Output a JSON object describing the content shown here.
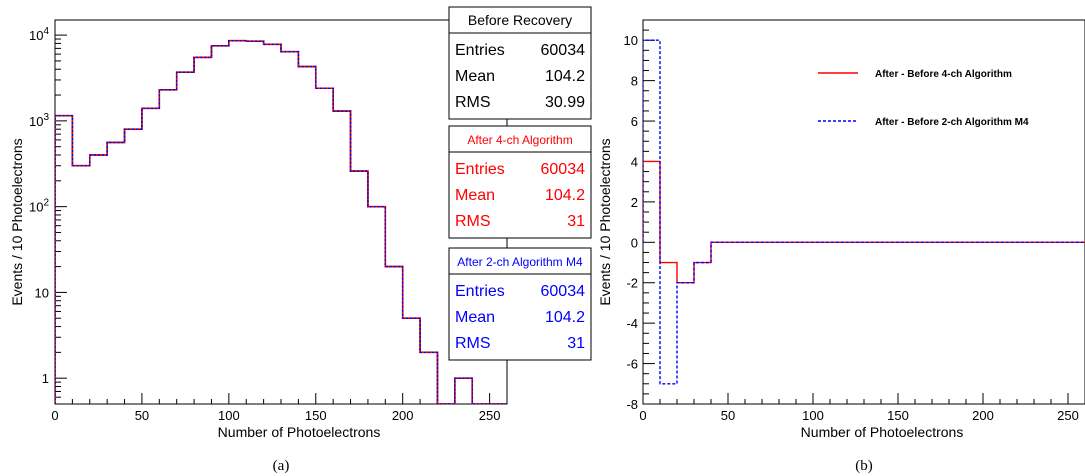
{
  "chart_data": [
    {
      "type": "step",
      "caption": "(a)",
      "xlabel": "Number of Photoelectrons",
      "ylabel": "Events / 10 Photoelectrons",
      "xlim": [
        0,
        260
      ],
      "ylim": [
        0.5,
        15000
      ],
      "yscale": "log",
      "xticks": [
        0,
        50,
        100,
        150,
        200,
        250
      ],
      "yticks": [
        {
          "v": 1,
          "label": "1"
        },
        {
          "v": 10,
          "label": "10"
        },
        {
          "v": 100,
          "label": "10",
          "exp": "2"
        },
        {
          "v": 1000,
          "label": "10",
          "exp": "3"
        },
        {
          "v": 10000,
          "label": "10",
          "exp": "4"
        }
      ],
      "bin_edges": [
        0,
        10,
        20,
        30,
        40,
        50,
        60,
        70,
        80,
        90,
        100,
        110,
        120,
        130,
        140,
        150,
        160,
        170,
        180,
        190,
        200,
        210,
        220,
        230,
        240,
        250,
        260
      ],
      "series": [
        {
          "name": "Before Recovery",
          "color": "#000000",
          "dash": "none",
          "values": [
            1150,
            300,
            400,
            560,
            800,
            1400,
            2300,
            3700,
            5500,
            7500,
            8600,
            8500,
            7800,
            6400,
            4300,
            2400,
            1300,
            260,
            100,
            20,
            5,
            2,
            0,
            1,
            0,
            0
          ]
        },
        {
          "name": "After 4-ch Algorithm",
          "color": "#ff0000",
          "dash": "none",
          "values": [
            1150,
            300,
            400,
            560,
            800,
            1400,
            2300,
            3700,
            5500,
            7500,
            8600,
            8500,
            7800,
            6400,
            4300,
            2400,
            1300,
            260,
            100,
            20,
            5,
            2,
            0,
            1,
            0,
            0
          ]
        },
        {
          "name": "After 2-ch Algorithm M4",
          "color": "#0000ff",
          "dash": "2,2",
          "values": [
            1150,
            300,
            400,
            560,
            800,
            1400,
            2300,
            3700,
            5500,
            7500,
            8600,
            8500,
            7800,
            6400,
            4300,
            2400,
            1300,
            260,
            100,
            20,
            5,
            2,
            0,
            1,
            0,
            0
          ]
        }
      ],
      "stat_boxes": [
        {
          "title": "Before Recovery",
          "color": "#000000",
          "rows": [
            {
              "k": "Entries",
              "v": "60034"
            },
            {
              "k": "Mean",
              "v": "104.2"
            },
            {
              "k": "RMS",
              "v": "30.99"
            }
          ]
        },
        {
          "title": "After 4-ch Algorithm",
          "color": "#ff0000",
          "rows": [
            {
              "k": "Entries",
              "v": "60034"
            },
            {
              "k": "Mean",
              "v": "104.2"
            },
            {
              "k": "RMS",
              "v": "31"
            }
          ]
        },
        {
          "title": "After 2-ch Algorithm M4",
          "color": "#0000ff",
          "rows": [
            {
              "k": "Entries",
              "v": "60034"
            },
            {
              "k": "Mean",
              "v": "104.2"
            },
            {
              "k": "RMS",
              "v": "31"
            }
          ]
        }
      ]
    },
    {
      "type": "step",
      "caption": "(b)",
      "xlabel": "Number of Photoelectrons",
      "ylabel": "Events / 10 Photoelectrons",
      "xlim": [
        0,
        260
      ],
      "ylim": [
        -8,
        11
      ],
      "yscale": "linear",
      "xticks": [
        0,
        50,
        100,
        150,
        200,
        250
      ],
      "yticks": [
        -8,
        -6,
        -4,
        -2,
        0,
        2,
        4,
        6,
        8,
        10
      ],
      "bin_edges": [
        0,
        10,
        20,
        30,
        40,
        50,
        60,
        70,
        80,
        90,
        100,
        110,
        120,
        130,
        140,
        150,
        160,
        170,
        180,
        190,
        200,
        210,
        220,
        230,
        240,
        250,
        260
      ],
      "series": [
        {
          "name": "After - Before 4-ch Algorithm",
          "color": "#ff0000",
          "dash": "none",
          "values": [
            4,
            -1,
            -2,
            -1,
            0,
            0,
            0,
            0,
            0,
            0,
            0,
            0,
            0,
            0,
            0,
            0,
            0,
            0,
            0,
            0,
            0,
            0,
            0,
            0,
            0,
            0
          ]
        },
        {
          "name": "After - Before 2-ch Algorithm M4",
          "color": "#0000ff",
          "dash": "3,2",
          "values": [
            10,
            -7,
            -2,
            -1,
            0,
            0,
            0,
            0,
            0,
            0,
            0,
            0,
            0,
            0,
            0,
            0,
            0,
            0,
            0,
            0,
            0,
            0,
            0,
            0,
            0,
            0
          ]
        }
      ]
    }
  ]
}
